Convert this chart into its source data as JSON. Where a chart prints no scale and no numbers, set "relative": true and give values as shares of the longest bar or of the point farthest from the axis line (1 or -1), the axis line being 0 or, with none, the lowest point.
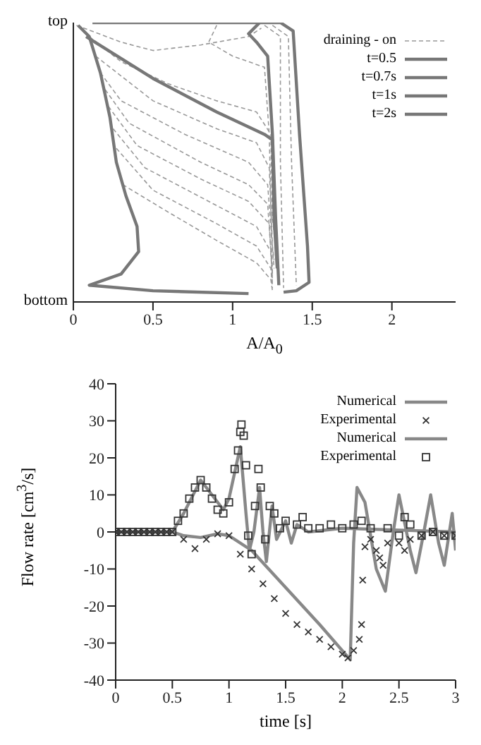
{
  "chart_data": [
    {
      "type": "line",
      "xlabel": "A/A$_{0}$",
      "xlim": [
        0,
        2.4
      ],
      "xticks": [
        0,
        0.5,
        1,
        1.5,
        2
      ],
      "relative": true,
      "annotations": [
        "top",
        "bottom"
      ],
      "legend": "top right",
      "series": [
        {
          "name": "draining - on",
          "color": "#999999",
          "line_style": "dashed",
          "x": [
            0.1,
            0.3,
            0.6,
            0.9,
            1.15,
            1.24,
            1.25,
            1.27
          ],
          "values": [
            0.95,
            0.86,
            0.78,
            0.72,
            0.68,
            0.6,
            0.3,
            0.2
          ]
        },
        {
          "color": "#999999",
          "line_style": "dashed",
          "x": [
            0.14,
            0.5,
            0.9,
            1.15,
            1.23,
            1.25,
            1.26
          ],
          "values": [
            0.88,
            0.72,
            0.62,
            0.57,
            0.48,
            0.2,
            0.15
          ]
        },
        {
          "color": "#999999",
          "line_style": "dashed",
          "x": [
            0.17,
            0.3,
            0.7,
            1.1,
            1.22,
            1.25,
            1.26
          ],
          "values": [
            0.82,
            0.72,
            0.6,
            0.5,
            0.42,
            0.2,
            0.12
          ]
        },
        {
          "color": "#999999",
          "line_style": "dashed",
          "x": [
            0.2,
            0.35,
            0.8,
            1.1,
            1.22,
            1.25
          ],
          "values": [
            0.76,
            0.64,
            0.5,
            0.42,
            0.35,
            0.1
          ]
        },
        {
          "color": "#999999",
          "line_style": "dashed",
          "x": [
            0.22,
            0.4,
            0.8,
            1.1,
            1.23,
            1.25
          ],
          "values": [
            0.7,
            0.56,
            0.44,
            0.36,
            0.28,
            0.08
          ]
        },
        {
          "color": "#999999",
          "line_style": "dashed",
          "x": [
            0.25,
            0.45,
            0.85,
            1.15,
            1.24,
            1.25
          ],
          "values": [
            0.62,
            0.48,
            0.36,
            0.27,
            0.18,
            0.06
          ]
        },
        {
          "color": "#999999",
          "line_style": "dashed",
          "x": [
            0.27,
            0.5,
            0.9,
            1.15,
            1.24,
            1.25
          ],
          "values": [
            0.55,
            0.4,
            0.28,
            0.2,
            0.12,
            0.05
          ]
        },
        {
          "color": "#999999",
          "line_style": "dashed",
          "x": [
            0.31,
            0.6,
            0.9,
            1.15,
            1.24,
            1.25
          ],
          "values": [
            0.42,
            0.32,
            0.22,
            0.14,
            0.08,
            0.04
          ]
        },
        {
          "color": "#999999",
          "line_style": "dashed",
          "x": [
            0.02,
            0.3,
            0.5,
            0.8,
            1.1,
            1.18
          ],
          "values": [
            0.99,
            0.93,
            0.9,
            0.92,
            0.95,
            0.98
          ]
        },
        {
          "color": "#999999",
          "line_style": "dashed",
          "x": [
            0.9,
            0.85,
            1.0,
            1.2,
            1.23,
            1.25
          ],
          "values": [
            0.99,
            0.93,
            0.88,
            0.84,
            0.6,
            0.1
          ]
        },
        {
          "color": "#999999",
          "line_style": "dashed",
          "x": [
            1.2,
            1.3,
            1.3,
            1.32
          ],
          "values": [
            0.99,
            0.95,
            0.5,
            0.05
          ]
        },
        {
          "color": "#999999",
          "line_style": "dashed",
          "x": [
            1.25,
            1.35,
            1.37,
            1.4
          ],
          "values": [
            0.99,
            0.95,
            0.5,
            0.06
          ]
        },
        {
          "name": "t=0.5",
          "color": "#777777",
          "line_style": "solid",
          "x": [
            0.12,
            1.3,
            1.38,
            1.42,
            1.47,
            1.48,
            1.4,
            1.32
          ],
          "values": [
            1,
            1,
            0.97,
            0.6,
            0.2,
            0.07,
            0.04,
            0.035
          ]
        },
        {
          "name": "t=0.7s",
          "color": "#777777",
          "line_style": "solid",
          "x": [
            1.17,
            1.1,
            1.15,
            1.22,
            1.25,
            1.27,
            1.29
          ],
          "values": [
            1,
            0.96,
            0.93,
            0.88,
            0.6,
            0.3,
            0.06
          ]
        },
        {
          "name": "t=1s",
          "color": "#777777",
          "line_style": "solid",
          "x": [
            0.08,
            0.5,
            0.9,
            1.2,
            1.25,
            1.26,
            1.28
          ],
          "values": [
            0.95,
            0.8,
            0.68,
            0.6,
            0.58,
            0.3,
            0.12
          ]
        },
        {
          "name": "t=2s",
          "color": "#777777",
          "line_style": "solid",
          "x": [
            0.03,
            0.1,
            0.17,
            0.23,
            0.27,
            0.33,
            0.4,
            0.41,
            0.3,
            0.1,
            0.5,
            1.1
          ],
          "values": [
            0.99,
            0.95,
            0.82,
            0.66,
            0.5,
            0.38,
            0.27,
            0.18,
            0.1,
            0.06,
            0.04,
            0.03
          ]
        }
      ]
    },
    {
      "type": "line",
      "xlabel": "time [s]",
      "ylabel": "Flow rate [cm$^{3}$/s]",
      "xlim": [
        0,
        3
      ],
      "xticks": [
        0,
        0.5,
        1,
        1.5,
        2,
        2.5,
        3
      ],
      "ylim": [
        -40,
        40
      ],
      "yticks": [
        -40,
        -30,
        -20,
        -10,
        0,
        10,
        20,
        30,
        40
      ],
      "legend": "top right",
      "series": [
        {
          "name": "Numerical",
          "color": "#888888",
          "line_style": "solid",
          "x": [
            0,
            0.5,
            0.6,
            0.75,
            0.9,
            1.0,
            1.2,
            1.5,
            1.8,
            2.07,
            2.1,
            2.13,
            2.2,
            2.3,
            2.38,
            2.45,
            2.5,
            2.6,
            2.65,
            2.72,
            2.78,
            2.85,
            2.9,
            2.97,
            3.0
          ],
          "values": [
            0,
            0,
            -1,
            -1.5,
            -0.5,
            -1,
            -5,
            -15,
            -25,
            -34.5,
            -3,
            12,
            8,
            -10,
            -16,
            0,
            10,
            -5,
            -11,
            0,
            10,
            -3,
            -9,
            5,
            -5
          ]
        },
        {
          "name": "Experimental",
          "type": "scatter",
          "marker": "cross",
          "color": "#333333",
          "x": [
            0,
            0.05,
            0.1,
            0.15,
            0.2,
            0.25,
            0.3,
            0.35,
            0.4,
            0.45,
            0.5,
            0.6,
            0.7,
            0.8,
            0.9,
            1.0,
            1.1,
            1.2,
            1.3,
            1.4,
            1.5,
            1.6,
            1.7,
            1.8,
            1.9,
            2.0,
            2.05,
            2.1,
            2.15,
            2.17,
            2.18,
            2.2,
            2.25,
            2.3,
            2.33,
            2.36,
            2.4,
            2.5,
            2.55,
            2.6,
            2.7,
            2.8,
            2.9,
            3.0
          ],
          "values": [
            0,
            0,
            0,
            0,
            0,
            0,
            0,
            0,
            0,
            0,
            0,
            -2,
            -4.5,
            -2,
            -0.5,
            -1,
            -6,
            -10,
            -14,
            -18,
            -22,
            -25,
            -27,
            -29,
            -31,
            -33,
            -34,
            -32,
            -29,
            -25,
            -13,
            -4,
            -2,
            -5,
            -7,
            -9,
            -3,
            -3,
            -5,
            -2,
            -1,
            0,
            -1,
            -1
          ]
        },
        {
          "name": "Numerical",
          "color": "#888888",
          "line_style": "solid",
          "x": [
            0,
            0.5,
            0.6,
            0.75,
            0.85,
            0.95,
            1.0,
            1.05,
            1.1,
            1.15,
            1.18,
            1.22,
            1.27,
            1.3,
            1.33,
            1.38,
            1.42,
            1.5,
            1.55,
            1.6,
            1.7,
            2.0,
            2.5,
            3.0
          ],
          "values": [
            0,
            0,
            5,
            14,
            10,
            6,
            9,
            16,
            23,
            5,
            -5,
            0,
            12,
            0,
            -8,
            7,
            -2,
            3,
            -3,
            2,
            0,
            1,
            0.5,
            0
          ]
        },
        {
          "name": "Experimental",
          "type": "scatter",
          "marker": "square",
          "color": "#333333",
          "x": [
            0,
            0.05,
            0.1,
            0.15,
            0.2,
            0.25,
            0.3,
            0.35,
            0.4,
            0.45,
            0.5,
            0.55,
            0.6,
            0.65,
            0.7,
            0.75,
            0.8,
            0.85,
            0.9,
            0.95,
            1.0,
            1.05,
            1.08,
            1.1,
            1.11,
            1.13,
            1.15,
            1.17,
            1.2,
            1.23,
            1.26,
            1.28,
            1.32,
            1.36,
            1.4,
            1.45,
            1.5,
            1.6,
            1.65,
            1.7,
            1.8,
            1.9,
            2.0,
            2.1,
            2.17,
            2.25,
            2.4,
            2.5,
            2.55,
            2.6,
            2.7,
            2.8,
            2.9,
            3.0
          ],
          "values": [
            0,
            0,
            0,
            0,
            0,
            0,
            0,
            0,
            0,
            0,
            0,
            3,
            5,
            9,
            12,
            14,
            12,
            9,
            6,
            5,
            8,
            17,
            22,
            27,
            29,
            26,
            18,
            -1,
            -6,
            7,
            17,
            12,
            -2,
            7,
            5,
            1,
            3,
            2,
            4,
            1,
            1,
            2,
            1,
            2,
            3,
            1,
            1,
            -1,
            4,
            2,
            -1,
            0,
            -1,
            -1
          ]
        }
      ]
    }
  ]
}
